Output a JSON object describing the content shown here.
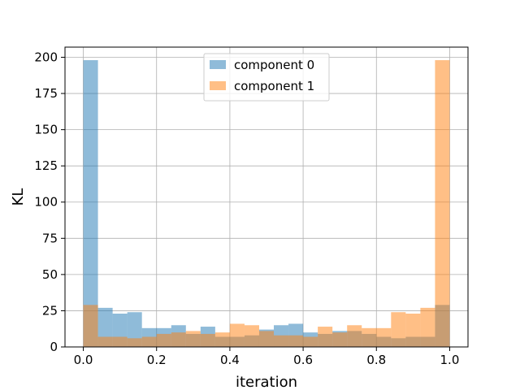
{
  "chart_data": {
    "type": "bar",
    "title": "",
    "xlabel": "iteration",
    "ylabel": "KL",
    "xlim": [
      -0.05,
      1.05
    ],
    "ylim": [
      0,
      207
    ],
    "grid": true,
    "legend_position": "top-center",
    "x_ticks": [
      0.0,
      0.2,
      0.4,
      0.6,
      0.8,
      1.0
    ],
    "x_tick_labels": [
      "0.0",
      "0.2",
      "0.4",
      "0.6",
      "0.8",
      "1.0"
    ],
    "y_ticks": [
      0,
      25,
      50,
      75,
      100,
      125,
      150,
      175,
      200
    ],
    "y_tick_labels": [
      "0",
      "25",
      "50",
      "75",
      "100",
      "125",
      "150",
      "175",
      "200"
    ],
    "bin_edges": [
      0.0,
      0.04,
      0.08,
      0.12,
      0.16,
      0.2,
      0.24,
      0.28,
      0.32,
      0.36,
      0.4,
      0.44,
      0.48,
      0.52,
      0.56,
      0.6,
      0.64,
      0.68,
      0.72,
      0.76,
      0.8,
      0.84,
      0.88,
      0.92,
      0.96,
      1.0
    ],
    "series": [
      {
        "name": "component 0",
        "color": "#1f77b4",
        "opacity": 0.5,
        "values": [
          198,
          27,
          23,
          24,
          13,
          13,
          15,
          9,
          14,
          7,
          7,
          8,
          12,
          15,
          16,
          10,
          9,
          11,
          11,
          9,
          7,
          6,
          7,
          7,
          29
        ]
      },
      {
        "name": "component 1",
        "color": "#ff7f0e",
        "opacity": 0.5,
        "values": [
          29,
          7,
          7,
          6,
          7,
          9,
          10,
          11,
          9,
          10,
          16,
          15,
          11,
          8,
          8,
          7,
          14,
          10,
          15,
          13,
          13,
          24,
          23,
          27,
          198
        ]
      }
    ]
  }
}
